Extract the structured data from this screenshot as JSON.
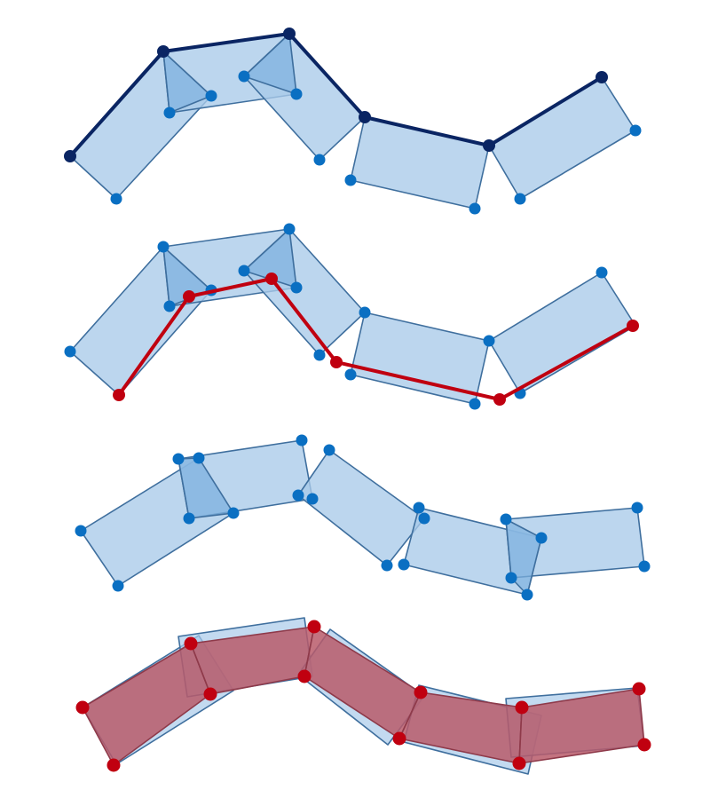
{
  "colors": {
    "background": "#ffffff",
    "rect_fill": "#a9cbe9",
    "rect_overlap_fill": "#7fb2e0",
    "rect_stroke": "#3f6f9e",
    "point_blue": "#0a6fc2",
    "point_navy": "#0a2563",
    "line_navy": "#0a2563",
    "point_red": "#c00010",
    "line_red": "#c00010",
    "rect_red_fill": "#b85a6a",
    "rect_red_stroke": "#8e3a4a"
  },
  "diagrams": [
    {
      "name": "skeleton-polyline-panel",
      "shows_polyline": "navy",
      "red_rects": false
    },
    {
      "name": "inner-polyline-panel",
      "shows_polyline": "red",
      "red_rects": false
    },
    {
      "name": "separated-rectangles-panel",
      "shows_polyline": "none",
      "red_rects": false
    },
    {
      "name": "overlay-comparison-panel",
      "shows_polyline": "none",
      "red_rects": true
    }
  ]
}
